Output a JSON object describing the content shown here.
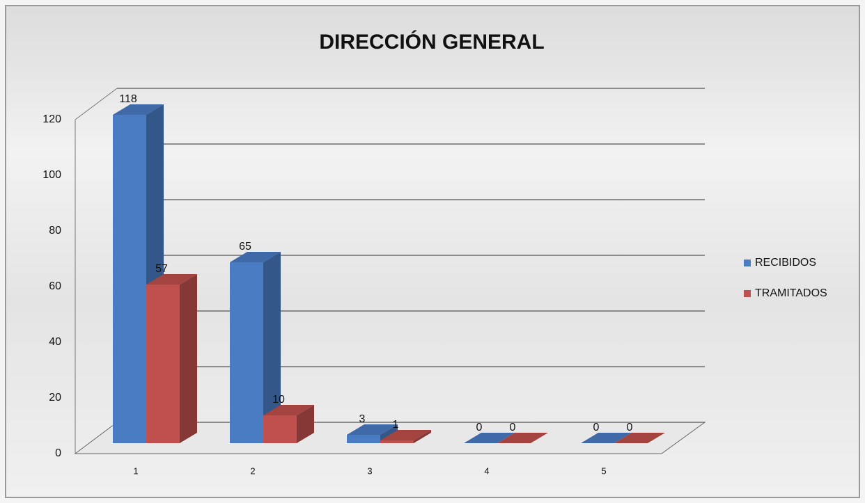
{
  "chart_data": {
    "type": "bar3d",
    "title": "DIRECCIÓN GENERAL",
    "categories": [
      "1",
      "2",
      "3",
      "4",
      "5"
    ],
    "series": [
      {
        "name": "RECIBIDOS",
        "color": "#4a7cc4",
        "values": [
          118,
          65,
          3,
          0,
          0
        ]
      },
      {
        "name": "TRAMITADOS",
        "color": "#c0504d",
        "values": [
          57,
          10,
          1,
          0,
          0
        ]
      }
    ],
    "ylim": [
      0,
      120
    ],
    "yticks": [
      0,
      20,
      40,
      60,
      80,
      100,
      120
    ],
    "grid": true,
    "legend": "right"
  }
}
